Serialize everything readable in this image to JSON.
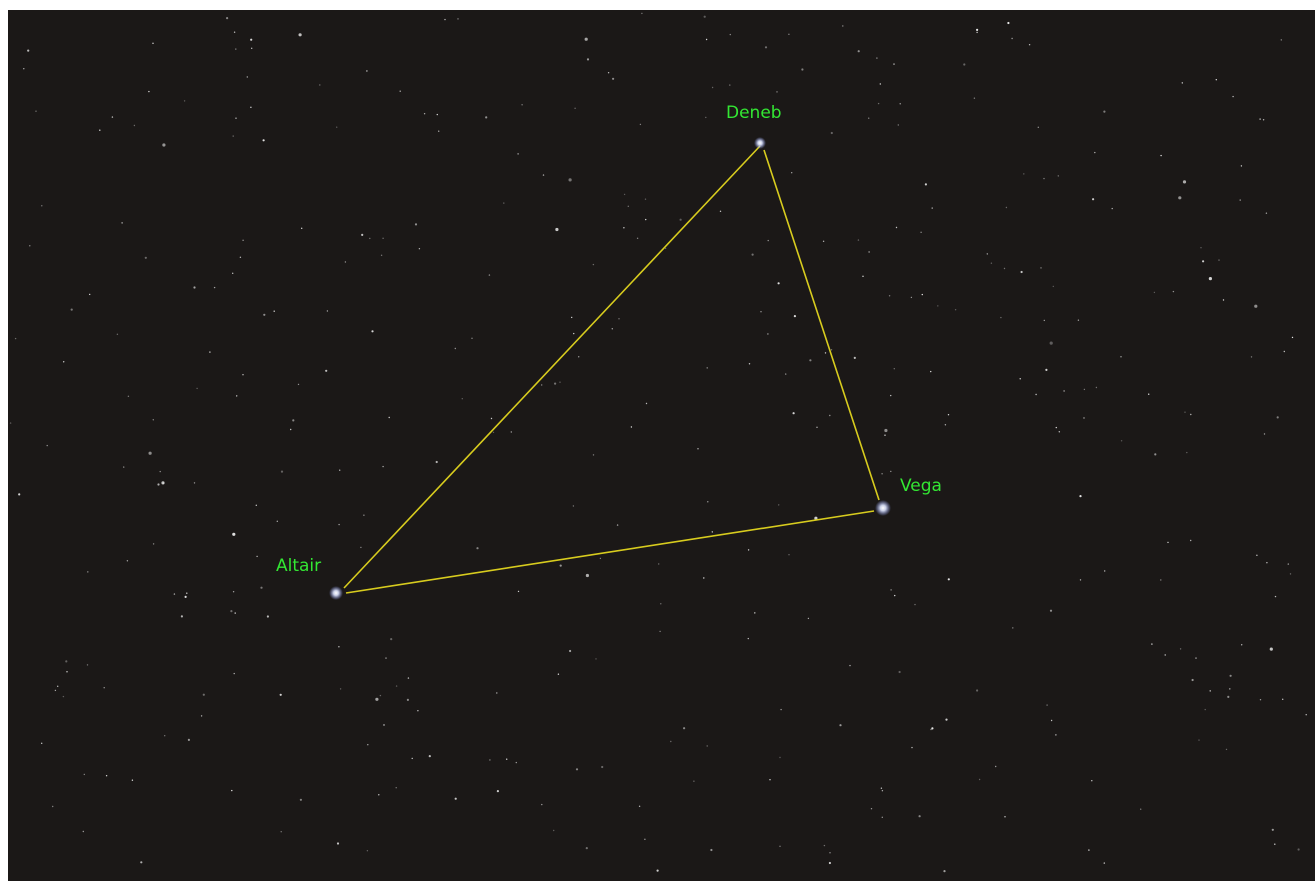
{
  "stars": [
    {
      "label": "Deneb"
    },
    {
      "label": "Vega"
    },
    {
      "label": "Altair"
    }
  ]
}
